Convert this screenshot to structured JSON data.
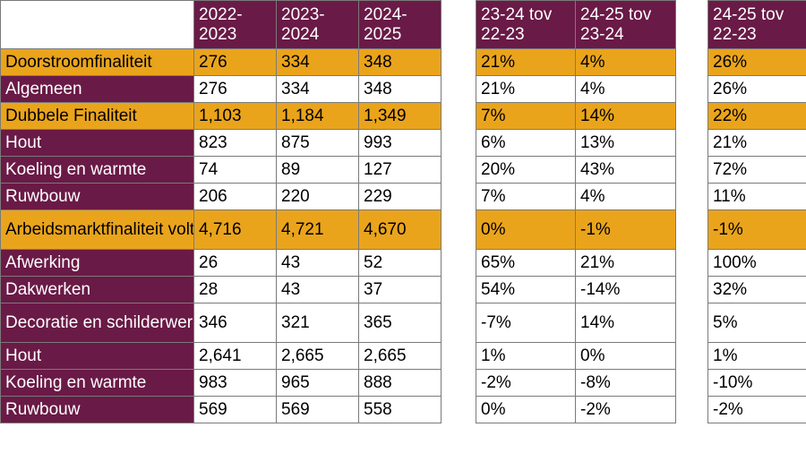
{
  "colors": {
    "header": "#6a1a46",
    "highlight": "#eaa41c",
    "plain": "#ffffff"
  },
  "headers": {
    "counts": [
      "2022-\n2023",
      "2023-\n2024",
      "2024-\n2025"
    ],
    "changes": [
      "23-24 tov\n22-23",
      "24-25 tov\n23-24"
    ],
    "total_change": "24-25 tov\n22-23"
  },
  "rows": [
    {
      "label": "Doorstroomfinaliteit",
      "values": [
        "276",
        "334",
        "348"
      ],
      "changes": [
        "21%",
        "4%"
      ],
      "total": "26%",
      "highlight": true
    },
    {
      "label": "Algemeen",
      "values": [
        "276",
        "334",
        "348"
      ],
      "changes": [
        "21%",
        "4%"
      ],
      "total": "26%",
      "highlight": false
    },
    {
      "label": "Dubbele Finaliteit",
      "values": [
        "1,103",
        "1,184",
        "1,349"
      ],
      "changes": [
        "7%",
        "14%"
      ],
      "total": "22%",
      "highlight": true
    },
    {
      "label": "Hout",
      "values": [
        "823",
        "875",
        "993"
      ],
      "changes": [
        "6%",
        "13%"
      ],
      "total": "21%",
      "highlight": false
    },
    {
      "label": "Koeling en warmte",
      "values": [
        "74",
        "89",
        "127"
      ],
      "changes": [
        "20%",
        "43%"
      ],
      "total": "72%",
      "highlight": false
    },
    {
      "label": "Ruwbouw",
      "values": [
        "206",
        "220",
        "229"
      ],
      "changes": [
        "7%",
        "4%"
      ],
      "total": "11%",
      "highlight": false
    },
    {
      "label": "Arbeidsmarktfinaliteit voltijds",
      "values": [
        "4,716",
        "4,721",
        "4,670"
      ],
      "changes": [
        "0%",
        "-1%"
      ],
      "total": "-1%",
      "highlight": true
    },
    {
      "label": "Afwerking",
      "values": [
        "26",
        "43",
        "52"
      ],
      "changes": [
        "65%",
        "21%"
      ],
      "total": "100%",
      "highlight": false
    },
    {
      "label": "Dakwerken",
      "values": [
        "28",
        "43",
        "37"
      ],
      "changes": [
        "54%",
        "-14%"
      ],
      "total": "32%",
      "highlight": false
    },
    {
      "label": "Decoratie en schilderwerk",
      "values": [
        "346",
        "321",
        "365"
      ],
      "changes": [
        "-7%",
        "14%"
      ],
      "total": "5%",
      "highlight": false
    },
    {
      "label": "Hout",
      "values": [
        "2,641",
        "2,665",
        "2,665"
      ],
      "changes": [
        "1%",
        "0%"
      ],
      "total": "1%",
      "highlight": false
    },
    {
      "label": "Koeling en warmte",
      "values": [
        "983",
        "965",
        "888"
      ],
      "changes": [
        "-2%",
        "-8%"
      ],
      "total": "-10%",
      "highlight": false
    },
    {
      "label": "Ruwbouw",
      "values": [
        "569",
        "569",
        "558"
      ],
      "changes": [
        "0%",
        "-2%"
      ],
      "total": "-2%",
      "highlight": false
    }
  ]
}
